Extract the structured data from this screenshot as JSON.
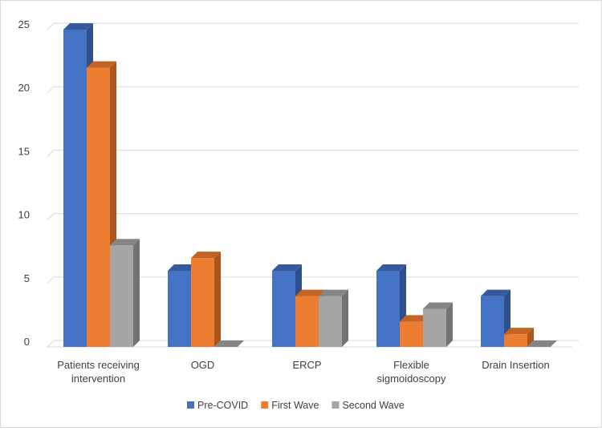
{
  "chart_data": {
    "type": "bar",
    "style": "3d-clustered-column",
    "title": "",
    "xlabel": "",
    "ylabel": "",
    "ylim": [
      0,
      25
    ],
    "yticks": [
      0,
      5,
      10,
      15,
      20,
      25
    ],
    "grid": true,
    "legend_position": "bottom",
    "categories": [
      [
        "Patients receiving",
        "intervention"
      ],
      [
        "OGD"
      ],
      [
        "ERCP"
      ],
      [
        "Flexible",
        "sigmoidoscopy"
      ],
      [
        "Drain Insertion"
      ]
    ],
    "series": [
      {
        "name": "Pre-COVID",
        "values": [
          25,
          6,
          6,
          6,
          4
        ],
        "color": "#4472c4",
        "side_color": "#2f4f8c",
        "top_color": "#36599c"
      },
      {
        "name": "First Wave",
        "values": [
          22,
          7,
          4,
          2,
          1
        ],
        "color": "#ed7d31",
        "side_color": "#a9571f",
        "top_color": "#c16426"
      },
      {
        "name": "Second Wave",
        "values": [
          8,
          0,
          4,
          3,
          0
        ],
        "color": "#a5a5a5",
        "side_color": "#737373",
        "top_color": "#858585"
      }
    ]
  }
}
